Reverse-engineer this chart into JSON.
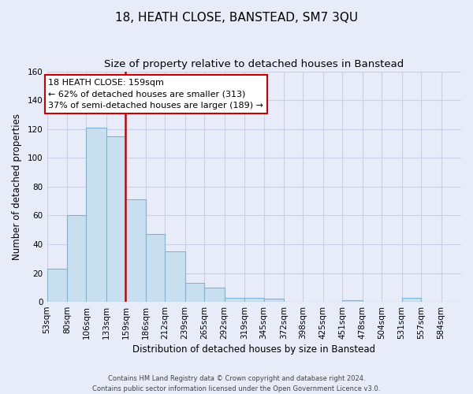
{
  "title": "18, HEATH CLOSE, BANSTEAD, SM7 3QU",
  "subtitle": "Size of property relative to detached houses in Banstead",
  "xlabel": "Distribution of detached houses by size in Banstead",
  "ylabel": "Number of detached properties",
  "bin_labels": [
    "53sqm",
    "80sqm",
    "106sqm",
    "133sqm",
    "159sqm",
    "186sqm",
    "212sqm",
    "239sqm",
    "265sqm",
    "292sqm",
    "319sqm",
    "345sqm",
    "372sqm",
    "398sqm",
    "425sqm",
    "451sqm",
    "478sqm",
    "504sqm",
    "531sqm",
    "557sqm",
    "584sqm"
  ],
  "bar_heights": [
    23,
    60,
    121,
    115,
    71,
    47,
    35,
    13,
    10,
    3,
    3,
    2,
    0,
    0,
    0,
    1,
    0,
    0,
    3,
    0,
    0
  ],
  "bin_edges": [
    53,
    80,
    106,
    133,
    159,
    186,
    212,
    239,
    265,
    292,
    319,
    345,
    372,
    398,
    425,
    451,
    478,
    504,
    531,
    557,
    584
  ],
  "property_value": 159,
  "property_label": "18 HEATH CLOSE: 159sqm",
  "annotation_line1": "← 62% of detached houses are smaller (313)",
  "annotation_line2": "37% of semi-detached houses are larger (189) →",
  "bar_fill_color": "#c8dff0",
  "bar_edge_color": "#7fb3d3",
  "vline_color": "#cc0000",
  "ylim": [
    0,
    160
  ],
  "yticks": [
    0,
    20,
    40,
    60,
    80,
    100,
    120,
    140,
    160
  ],
  "footer_line1": "Contains HM Land Registry data © Crown copyright and database right 2024.",
  "footer_line2": "Contains public sector information licensed under the Open Government Licence v3.0.",
  "annotation_box_facecolor": "#ffffff",
  "annotation_box_edgecolor": "#cc0000",
  "background_color": "#e8ecf8",
  "grid_color": "#c8d0e8",
  "title_fontsize": 11,
  "subtitle_fontsize": 9.5,
  "axis_label_fontsize": 8.5,
  "tick_fontsize": 7.5
}
